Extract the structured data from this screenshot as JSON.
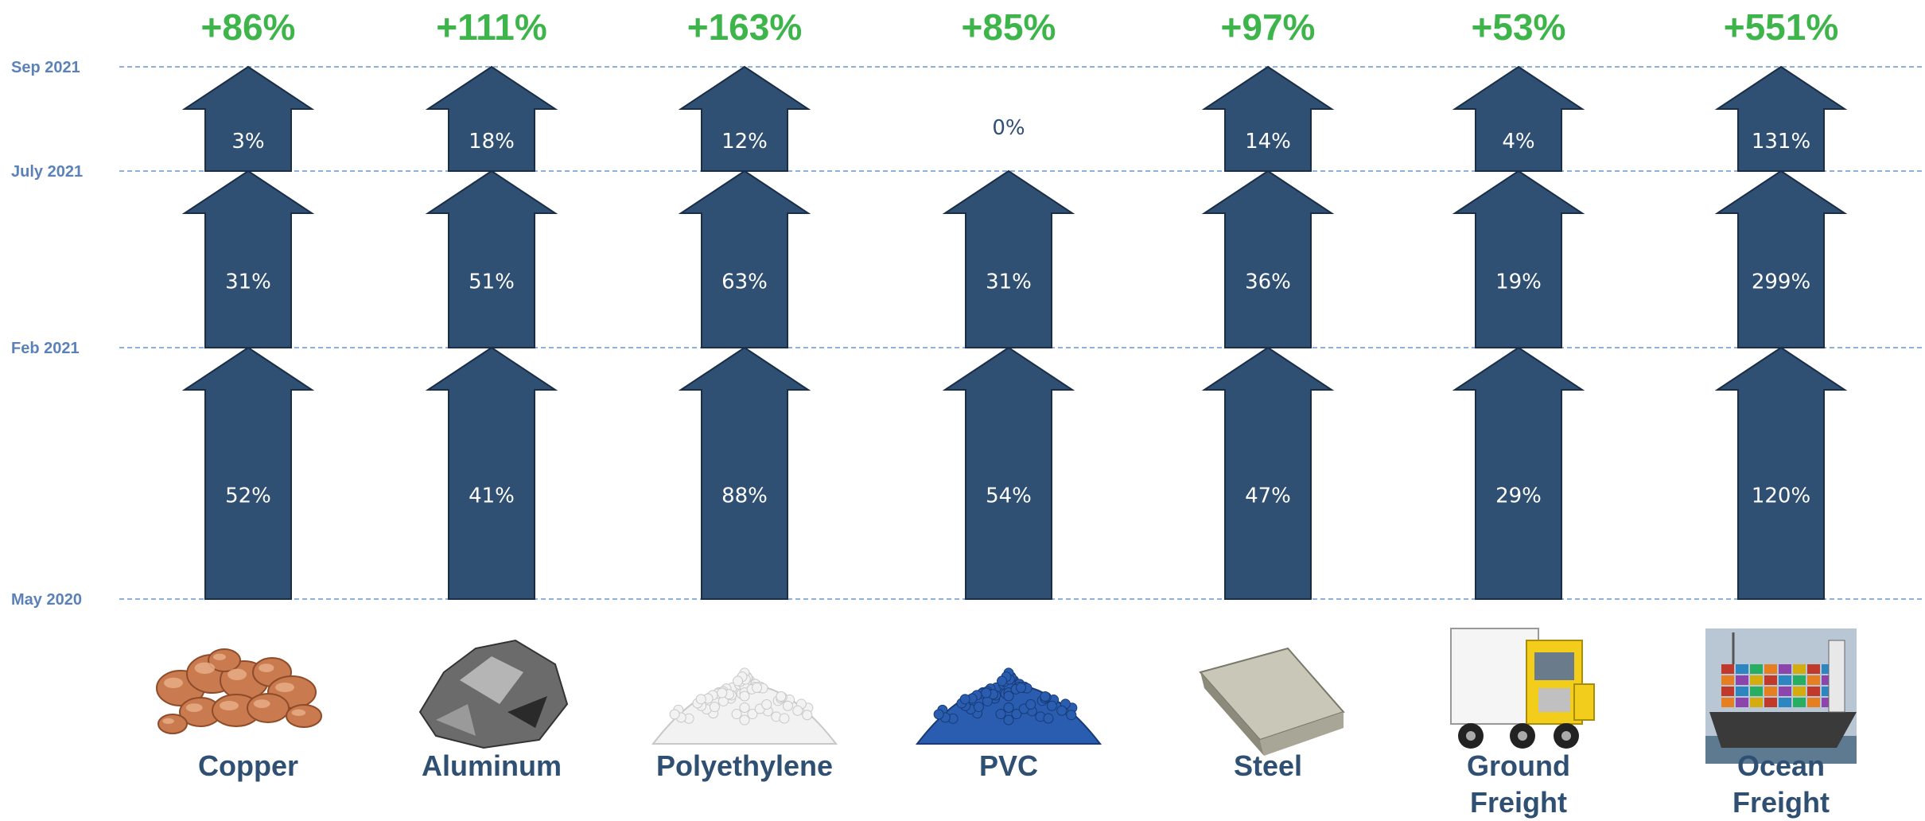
{
  "chart_data": {
    "type": "bar",
    "title": "",
    "periods": [
      "May 2020",
      "Feb 2021",
      "July 2021",
      "Sep 2021"
    ],
    "segment_names": [
      "May 2020 – Feb 2021",
      "Feb 2021 – July 2021",
      "July 2021 – Sep 2021"
    ],
    "categories": [
      {
        "name": [
          "Copper"
        ],
        "total": "+86%",
        "segments": [
          "52%",
          "31%",
          "3%"
        ],
        "image": "copper-nuggets"
      },
      {
        "name": [
          "Aluminum"
        ],
        "total": "+111%",
        "segments": [
          "41%",
          "51%",
          "18%"
        ],
        "image": "aluminum-ore"
      },
      {
        "name": [
          "Polyethylene"
        ],
        "total": "+163%",
        "segments": [
          "88%",
          "63%",
          "12%"
        ],
        "image": "polyethylene-pellets"
      },
      {
        "name": [
          "PVC"
        ],
        "total": "+85%",
        "segments": [
          "54%",
          "31%",
          "0%"
        ],
        "image": "pvc-pellets"
      },
      {
        "name": [
          "Steel"
        ],
        "total": "+97%",
        "segments": [
          "47%",
          "36%",
          "14%"
        ],
        "image": "steel-ingot"
      },
      {
        "name": [
          "Ground",
          "Freight"
        ],
        "total": "+53%",
        "segments": [
          "29%",
          "19%",
          "4%"
        ],
        "image": "semi-truck"
      },
      {
        "name": [
          "Ocean",
          "Freight"
        ],
        "total": "+551%",
        "segments": [
          "120%",
          "299%",
          "131%"
        ],
        "image": "container-ship"
      }
    ]
  },
  "colors": {
    "arrow_fill": "#2f4f73",
    "arrow_stroke": "#1a2e47",
    "arrow_text": "#ffffff",
    "empty_text": "#2f4f73",
    "total_text": "#3db54a",
    "period_text": "#5b82b8",
    "gridline": "#8fb0d8",
    "category_text": "#2f4f73"
  }
}
